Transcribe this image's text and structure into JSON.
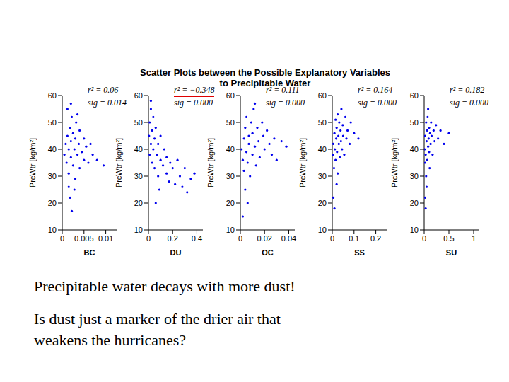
{
  "title": [
    "Scatter Plots between the Possible Explanatory Variables",
    "to Precipitable Water"
  ],
  "text": [
    "Precipitable water decays with more dust!",
    "Is dust just a marker of the drier air that",
    "weakens the hurricanes?"
  ],
  "chart_data": [
    {
      "type": "scatter",
      "xlabel": "BC",
      "ylabel": "PrcWtr [kg/m²]",
      "xlim": [
        0,
        0.0125
      ],
      "xticks": [
        0,
        0.005,
        0.01
      ],
      "ylim": [
        10,
        60
      ],
      "yticks": [
        10,
        20,
        30,
        40,
        50,
        60
      ],
      "color": "#0000ee",
      "marker": "dot",
      "annotations": [
        {
          "text": "r² = 0.06"
        },
        {
          "text": "sig = 0.014"
        }
      ],
      "x": [
        0.0005,
        0.0008,
        0.001,
        0.0012,
        0.0015,
        0.0015,
        0.0018,
        0.002,
        0.002,
        0.0022,
        0.0025,
        0.0025,
        0.0028,
        0.003,
        0.003,
        0.0032,
        0.0035,
        0.0038,
        0.004,
        0.004,
        0.0045,
        0.005,
        0.005,
        0.0055,
        0.006,
        0.0065,
        0.007,
        0.0012,
        0.002,
        0.0018,
        0.0022,
        0.0015,
        0.0028,
        0.0035,
        0.008,
        0.0095
      ],
      "values": [
        38,
        42,
        35,
        45,
        40,
        31,
        48,
        37,
        43,
        52,
        34,
        46,
        40,
        29,
        44,
        50,
        38,
        42,
        33,
        47,
        39,
        44,
        36,
        41,
        35,
        42,
        38,
        55,
        57,
        22,
        17,
        26,
        25,
        53,
        36,
        34
      ]
    },
    {
      "type": "scatter",
      "xlabel": "DU",
      "ylabel": "PrcWtr [kg/m²]",
      "xlim": [
        0,
        0.45
      ],
      "xticks": [
        0,
        0.2,
        0.4
      ],
      "ylim": [
        10,
        60
      ],
      "yticks": [
        10,
        20,
        30,
        40,
        50,
        60
      ],
      "color": "#0000ee",
      "marker": "dot",
      "annotations": [
        {
          "text": "r² = −0.348",
          "color": "#e00000"
        },
        {
          "text": "sig = 0.000"
        }
      ],
      "x": [
        0.005,
        0.01,
        0.01,
        0.02,
        0.02,
        0.03,
        0.03,
        0.04,
        0.04,
        0.05,
        0.05,
        0.06,
        0.07,
        0.08,
        0.08,
        0.1,
        0.1,
        0.12,
        0.13,
        0.15,
        0.15,
        0.17,
        0.18,
        0.2,
        0.22,
        0.24,
        0.26,
        0.28,
        0.3,
        0.32,
        0.35,
        0.38,
        0.02,
        0.06,
        0.09
      ],
      "values": [
        45,
        50,
        38,
        55,
        42,
        47,
        35,
        52,
        40,
        44,
        33,
        48,
        38,
        42,
        30,
        36,
        45,
        34,
        40,
        31,
        37,
        28,
        35,
        33,
        27,
        36,
        30,
        26,
        33,
        24,
        29,
        31,
        58,
        20,
        25
      ]
    },
    {
      "type": "scatter",
      "xlabel": "OC",
      "ylabel": "PrcWtr [kg/m²]",
      "xlim": [
        0,
        0.045
      ],
      "xticks": [
        0,
        0.02,
        0.04
      ],
      "ylim": [
        10,
        60
      ],
      "yticks": [
        10,
        20,
        30,
        40,
        50,
        60
      ],
      "color": "#0000ee",
      "marker": "dot",
      "annotations": [
        {
          "text": "r² = 0.111"
        },
        {
          "text": "sig = 0.000"
        }
      ],
      "x": [
        0.001,
        0.002,
        0.003,
        0.003,
        0.004,
        0.005,
        0.005,
        0.006,
        0.007,
        0.007,
        0.008,
        0.009,
        0.01,
        0.01,
        0.011,
        0.012,
        0.013,
        0.014,
        0.015,
        0.016,
        0.018,
        0.019,
        0.02,
        0.022,
        0.024,
        0.026,
        0.028,
        0.03,
        0.004,
        0.006,
        0.002,
        0.012,
        0.034,
        0.038
      ],
      "values": [
        40,
        36,
        44,
        32,
        48,
        39,
        52,
        35,
        45,
        42,
        30,
        50,
        38,
        46,
        55,
        41,
        34,
        48,
        43,
        37,
        50,
        45,
        40,
        47,
        42,
        38,
        44,
        36,
        25,
        20,
        15,
        57,
        43,
        41
      ]
    },
    {
      "type": "scatter",
      "xlabel": "SS",
      "ylabel": "PrcWtr [kg/m²]",
      "xlim": [
        0,
        0.25
      ],
      "xticks": [
        0,
        0.1,
        0.2
      ],
      "ylim": [
        10,
        60
      ],
      "yticks": [
        10,
        20,
        30,
        40,
        50,
        60
      ],
      "color": "#0000ee",
      "marker": "dot",
      "annotations": [
        {
          "text": "r² = 0.164"
        },
        {
          "text": "sig = 0.000"
        }
      ],
      "x": [
        0.003,
        0.005,
        0.008,
        0.01,
        0.012,
        0.015,
        0.015,
        0.018,
        0.02,
        0.022,
        0.025,
        0.025,
        0.028,
        0.03,
        0.032,
        0.035,
        0.038,
        0.04,
        0.042,
        0.045,
        0.048,
        0.05,
        0.055,
        0.06,
        0.065,
        0.07,
        0.08,
        0.085,
        0.1,
        0.005,
        0.01,
        0.02,
        0.12
      ],
      "values": [
        38,
        42,
        33,
        46,
        40,
        51,
        36,
        44,
        48,
        39,
        53,
        31,
        45,
        42,
        50,
        37,
        47,
        43,
        55,
        40,
        49,
        45,
        38,
        52,
        44,
        47,
        42,
        50,
        46,
        22,
        18,
        27,
        44
      ]
    },
    {
      "type": "scatter",
      "xlabel": "SU",
      "ylabel": "PrcWtr [kg/m²]",
      "xlim": [
        0,
        1.1
      ],
      "xticks": [
        0,
        0.5,
        1
      ],
      "ylim": [
        10,
        60
      ],
      "yticks": [
        10,
        20,
        30,
        40,
        50,
        60
      ],
      "color": "#0000ee",
      "marker": "dot",
      "annotations": [
        {
          "text": "r² = 0.182"
        },
        {
          "text": "sig = 0.000"
        }
      ],
      "x": [
        0.01,
        0.02,
        0.02,
        0.03,
        0.04,
        0.04,
        0.05,
        0.06,
        0.06,
        0.07,
        0.08,
        0.09,
        0.1,
        0.1,
        0.11,
        0.12,
        0.13,
        0.14,
        0.15,
        0.17,
        0.19,
        0.21,
        0.24,
        0.28,
        0.33,
        0.4,
        0.5,
        0.02,
        0.03,
        0.05,
        0.08
      ],
      "values": [
        40,
        35,
        45,
        38,
        50,
        30,
        43,
        47,
        36,
        52,
        41,
        44,
        39,
        48,
        33,
        46,
        42,
        50,
        45,
        38,
        47,
        43,
        49,
        44,
        47,
        42,
        46,
        22,
        18,
        26,
        55
      ]
    }
  ]
}
